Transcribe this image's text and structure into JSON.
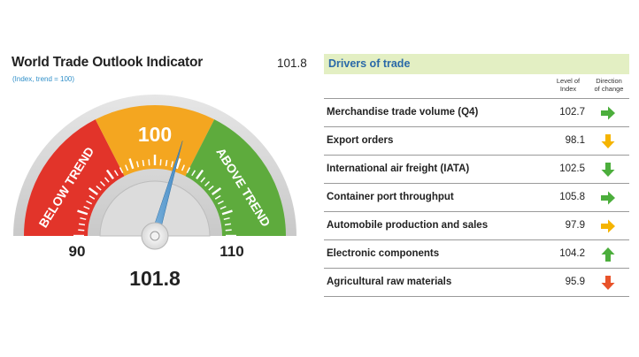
{
  "header": {
    "title": "World Trade Outlook Indicator",
    "subtitle": "(Index, trend = 100)",
    "value": "101.8"
  },
  "chart_data": {
    "type": "gauge",
    "min": 90,
    "max": 110,
    "center_label": "100",
    "min_label": "90",
    "max_label": "110",
    "value": 101.8,
    "value_label": "101.8",
    "zones": [
      {
        "label": "BELOW TREND",
        "from": 90,
        "to": 97,
        "color": "#e2342a"
      },
      {
        "label": "",
        "from": 97,
        "to": 103,
        "color": "#f4a620"
      },
      {
        "label": "ABOVE TREND",
        "from": 103,
        "to": 110,
        "color": "#5eab3d"
      }
    ]
  },
  "drivers": {
    "title": "Drivers of trade",
    "col_level": [
      "Level of",
      "Index"
    ],
    "col_direction": [
      "Direction",
      "of change"
    ],
    "items": [
      {
        "label": "Merchandise trade volume (Q4)",
        "value": "102.7",
        "direction": "right",
        "color": "#4cae3c"
      },
      {
        "label": "Export orders",
        "value": "98.1",
        "direction": "down",
        "color": "#f5b400"
      },
      {
        "label": "International air freight (IATA)",
        "value": "102.5",
        "direction": "down",
        "color": "#4cae3c"
      },
      {
        "label": "Container port throughput",
        "value": "105.8",
        "direction": "right",
        "color": "#4cae3c"
      },
      {
        "label": "Automobile production and sales",
        "value": "97.9",
        "direction": "right",
        "color": "#f5b400"
      },
      {
        "label": "Electronic components",
        "value": "104.2",
        "direction": "up",
        "color": "#4cae3c"
      },
      {
        "label": "Agricultural raw materials",
        "value": "95.9",
        "direction": "down",
        "color": "#e8532a"
      }
    ]
  }
}
